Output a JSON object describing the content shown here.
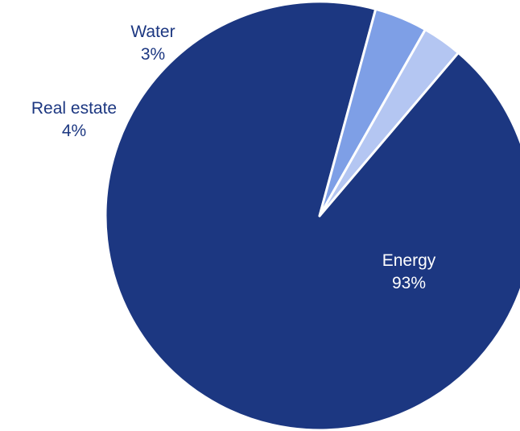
{
  "chart_data": {
    "type": "pie",
    "title": "",
    "slices": [
      {
        "label": "Energy",
        "value": 93,
        "pct_label": "93%",
        "color": "#1c3781",
        "text_color": "#ffffff"
      },
      {
        "label": "Real estate",
        "value": 4,
        "pct_label": "4%",
        "color": "#7e9fe6",
        "text_color": "#1c3781"
      },
      {
        "label": "Water",
        "value": 3,
        "pct_label": "3%",
        "color": "#b4c6f2",
        "text_color": "#1c3781"
      }
    ],
    "start_angle_deg": -49.6,
    "direction": "clockwise",
    "legend": "none",
    "slice_border_color": "#ffffff"
  }
}
